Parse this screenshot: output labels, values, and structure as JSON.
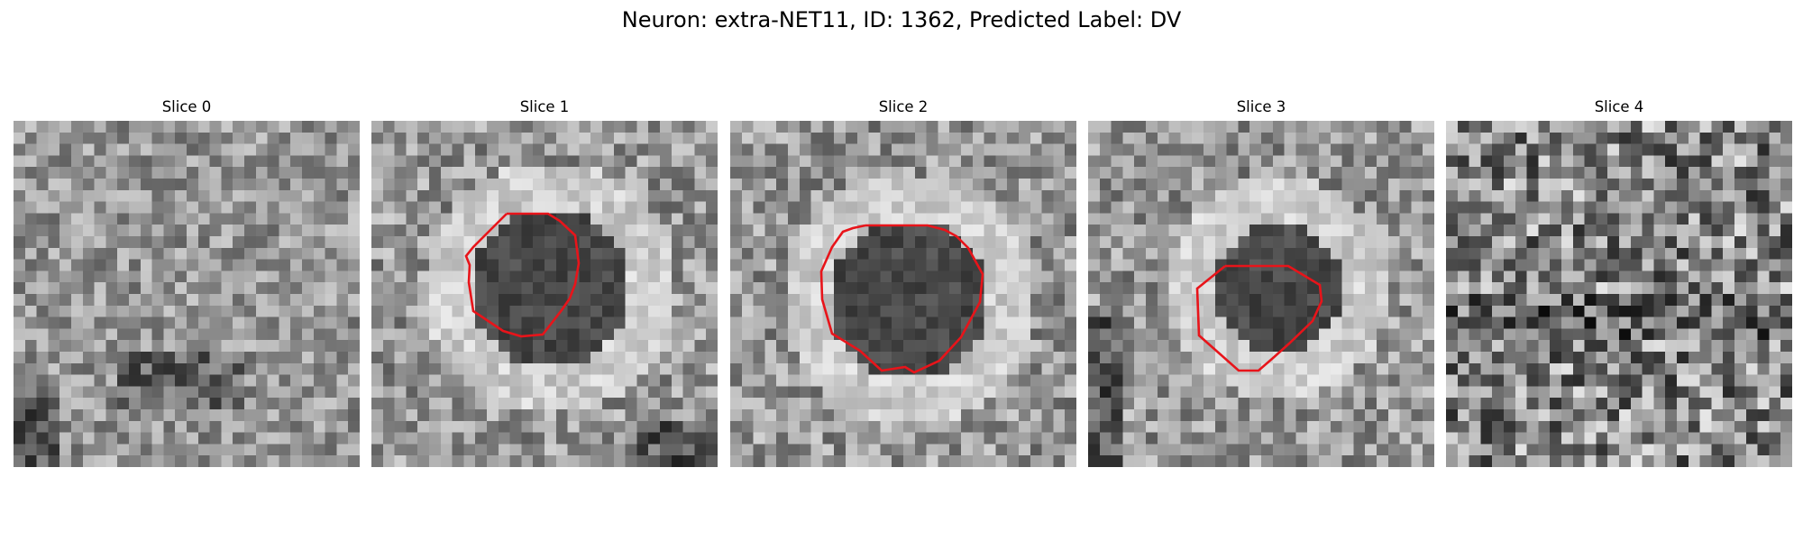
{
  "figure": {
    "title": "Neuron: extra-NET11, ID: 1362, Predicted Label: DV"
  },
  "slices": [
    {
      "title": "Slice 0",
      "has_contour": false
    },
    {
      "title": "Slice 1",
      "has_contour": true
    },
    {
      "title": "Slice 2",
      "has_contour": true
    },
    {
      "title": "Slice 3",
      "has_contour": true
    },
    {
      "title": "Slice 4",
      "has_contour": false
    }
  ],
  "colors": {
    "contour": "#e8141a",
    "background": "#ffffff"
  }
}
